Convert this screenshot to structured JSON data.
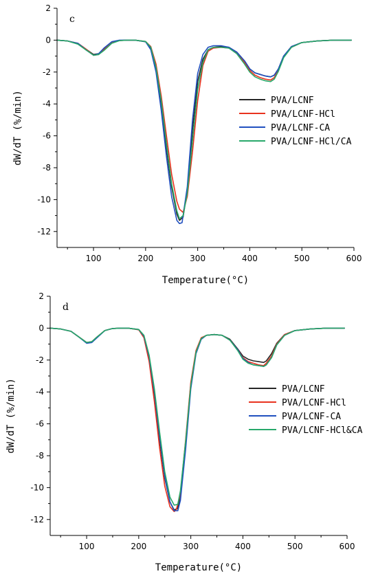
{
  "chart_data": [
    {
      "type": "line",
      "panel": "c",
      "xlabel": "Temperature(°C)",
      "ylabel": "dW/dT (%/min)",
      "xlim": [
        30,
        600
      ],
      "ylim": [
        -13,
        2
      ],
      "xticks": [
        100,
        200,
        300,
        400,
        500,
        600
      ],
      "yticks": [
        2,
        0,
        -2,
        -4,
        -6,
        -8,
        -10,
        -12
      ],
      "legend_position": "right",
      "series": [
        {
          "name": "PVA/LCNF",
          "color": "#262626",
          "x": [
            30,
            50,
            70,
            85,
            100,
            110,
            120,
            135,
            150,
            165,
            180,
            200,
            210,
            220,
            230,
            240,
            250,
            260,
            265,
            272,
            280,
            290,
            300,
            310,
            320,
            330,
            345,
            360,
            375,
            390,
            400,
            410,
            420,
            430,
            440,
            447,
            455,
            465,
            480,
            500,
            530,
            560,
            595
          ],
          "y": [
            0,
            -0.05,
            -0.2,
            -0.55,
            -0.9,
            -0.85,
            -0.55,
            -0.15,
            -0.02,
            0,
            0,
            -0.1,
            -0.5,
            -1.8,
            -4.0,
            -6.8,
            -9.2,
            -10.9,
            -11.3,
            -11.1,
            -9.4,
            -5.6,
            -2.6,
            -1.2,
            -0.6,
            -0.45,
            -0.4,
            -0.45,
            -0.75,
            -1.3,
            -1.8,
            -2.05,
            -2.15,
            -2.25,
            -2.3,
            -2.2,
            -1.8,
            -1.0,
            -0.4,
            -0.15,
            -0.05,
            0,
            0
          ]
        },
        {
          "name": "PVA/LCNF-HCl",
          "color": "#e8321e",
          "x": [
            30,
            50,
            70,
            85,
            100,
            110,
            120,
            135,
            150,
            165,
            180,
            200,
            210,
            220,
            230,
            240,
            250,
            260,
            265,
            272,
            280,
            290,
            300,
            310,
            320,
            330,
            345,
            360,
            375,
            390,
            400,
            410,
            420,
            430,
            440,
            447,
            455,
            465,
            480,
            500,
            530,
            560,
            595
          ],
          "y": [
            0,
            -0.05,
            -0.2,
            -0.55,
            -0.95,
            -0.9,
            -0.6,
            -0.15,
            -0.02,
            0,
            0,
            -0.08,
            -0.4,
            -1.5,
            -3.5,
            -6.0,
            -8.4,
            -10.1,
            -10.6,
            -10.8,
            -9.8,
            -7.0,
            -3.8,
            -1.6,
            -0.7,
            -0.5,
            -0.45,
            -0.5,
            -0.8,
            -1.4,
            -1.9,
            -2.2,
            -2.35,
            -2.45,
            -2.5,
            -2.35,
            -1.9,
            -1.05,
            -0.45,
            -0.15,
            -0.05,
            0,
            0
          ]
        },
        {
          "name": "PVA/LCNF-CA",
          "color": "#1f4fbf",
          "x": [
            30,
            50,
            70,
            85,
            100,
            110,
            120,
            135,
            150,
            165,
            180,
            200,
            210,
            220,
            230,
            240,
            250,
            260,
            265,
            270,
            280,
            290,
            300,
            310,
            320,
            330,
            345,
            360,
            375,
            390,
            400,
            410,
            420,
            430,
            440,
            447,
            455,
            465,
            480,
            500,
            530,
            560,
            595
          ],
          "y": [
            0,
            -0.05,
            -0.2,
            -0.6,
            -0.95,
            -0.85,
            -0.5,
            -0.1,
            0,
            0,
            0,
            -0.1,
            -0.6,
            -2.0,
            -4.4,
            -7.3,
            -9.8,
            -11.3,
            -11.5,
            -11.45,
            -9.2,
            -5.0,
            -2.1,
            -0.9,
            -0.45,
            -0.35,
            -0.35,
            -0.45,
            -0.75,
            -1.3,
            -1.8,
            -2.05,
            -2.15,
            -2.25,
            -2.3,
            -2.2,
            -1.8,
            -1.0,
            -0.4,
            -0.15,
            -0.05,
            0,
            0
          ]
        },
        {
          "name": "PVA/LCNF-HCl/CA",
          "color": "#27a86a",
          "x": [
            30,
            50,
            70,
            85,
            100,
            110,
            120,
            135,
            150,
            165,
            180,
            200,
            210,
            220,
            230,
            240,
            250,
            260,
            265,
            272,
            280,
            290,
            300,
            310,
            320,
            330,
            345,
            360,
            375,
            390,
            400,
            410,
            420,
            430,
            440,
            447,
            455,
            465,
            480,
            500,
            530,
            560,
            595
          ],
          "y": [
            0,
            -0.05,
            -0.25,
            -0.6,
            -0.95,
            -0.9,
            -0.65,
            -0.2,
            -0.03,
            0,
            0,
            -0.08,
            -0.45,
            -1.7,
            -3.8,
            -6.5,
            -9.0,
            -10.7,
            -11.2,
            -11.0,
            -9.6,
            -6.3,
            -3.1,
            -1.4,
            -0.6,
            -0.45,
            -0.45,
            -0.5,
            -0.85,
            -1.5,
            -2.0,
            -2.3,
            -2.45,
            -2.55,
            -2.6,
            -2.45,
            -1.95,
            -1.1,
            -0.45,
            -0.15,
            -0.05,
            0,
            0
          ]
        }
      ]
    },
    {
      "type": "line",
      "panel": "d",
      "xlabel": "Temperature(°C)",
      "ylabel": "dW/dT (%/min)",
      "xlim": [
        30,
        600
      ],
      "ylim": [
        -13,
        2
      ],
      "xticks": [
        100,
        200,
        300,
        400,
        500,
        600
      ],
      "yticks": [
        2,
        0,
        -2,
        -4,
        -6,
        -8,
        -10,
        -12
      ],
      "legend_position": "right",
      "series": [
        {
          "name": "PVA/LCNF",
          "color": "#262626",
          "x": [
            30,
            50,
            70,
            85,
            100,
            110,
            120,
            135,
            150,
            165,
            180,
            200,
            210,
            220,
            230,
            240,
            250,
            260,
            268,
            275,
            280,
            290,
            300,
            310,
            320,
            330,
            345,
            360,
            375,
            390,
            400,
            410,
            420,
            430,
            440,
            445,
            455,
            465,
            480,
            500,
            530,
            560,
            595
          ],
          "y": [
            0,
            -0.05,
            -0.2,
            -0.55,
            -0.9,
            -0.85,
            -0.55,
            -0.15,
            -0.02,
            0,
            0,
            -0.1,
            -0.5,
            -1.9,
            -4.2,
            -7.0,
            -9.4,
            -10.9,
            -11.4,
            -11.3,
            -10.5,
            -7.2,
            -3.5,
            -1.5,
            -0.65,
            -0.45,
            -0.4,
            -0.45,
            -0.7,
            -1.3,
            -1.75,
            -1.95,
            -2.05,
            -2.1,
            -2.15,
            -2.05,
            -1.6,
            -0.95,
            -0.4,
            -0.15,
            -0.05,
            0,
            0
          ]
        },
        {
          "name": "PVA/LCNF-HCl",
          "color": "#e8321e",
          "x": [
            30,
            50,
            70,
            85,
            100,
            110,
            120,
            135,
            150,
            165,
            180,
            200,
            210,
            220,
            230,
            240,
            250,
            260,
            268,
            272,
            280,
            290,
            300,
            310,
            320,
            330,
            345,
            360,
            375,
            390,
            400,
            410,
            420,
            430,
            440,
            445,
            455,
            465,
            480,
            500,
            530,
            560,
            595
          ],
          "y": [
            0,
            -0.05,
            -0.2,
            -0.55,
            -0.9,
            -0.85,
            -0.55,
            -0.15,
            -0.02,
            0,
            0,
            -0.1,
            -0.6,
            -2.1,
            -4.6,
            -7.5,
            -9.9,
            -11.2,
            -11.5,
            -11.4,
            -10.4,
            -7.0,
            -3.4,
            -1.4,
            -0.6,
            -0.45,
            -0.4,
            -0.45,
            -0.75,
            -1.35,
            -1.85,
            -2.1,
            -2.2,
            -2.3,
            -2.35,
            -2.2,
            -1.75,
            -1.0,
            -0.4,
            -0.15,
            -0.05,
            0,
            0
          ]
        },
        {
          "name": "PVA/LCNF-CA",
          "color": "#1f4fbf",
          "x": [
            30,
            50,
            70,
            85,
            100,
            110,
            120,
            135,
            150,
            165,
            180,
            200,
            210,
            220,
            230,
            240,
            250,
            260,
            268,
            275,
            280,
            290,
            300,
            310,
            320,
            330,
            345,
            360,
            375,
            390,
            400,
            410,
            420,
            430,
            440,
            445,
            455,
            465,
            480,
            500,
            530,
            560,
            595
          ],
          "y": [
            0,
            -0.05,
            -0.2,
            -0.55,
            -0.95,
            -0.9,
            -0.6,
            -0.15,
            -0.02,
            0,
            0,
            -0.08,
            -0.5,
            -1.8,
            -4.0,
            -6.8,
            -9.3,
            -10.9,
            -11.45,
            -11.45,
            -10.8,
            -7.6,
            -3.8,
            -1.6,
            -0.7,
            -0.45,
            -0.4,
            -0.45,
            -0.75,
            -1.35,
            -1.9,
            -2.15,
            -2.3,
            -2.35,
            -2.4,
            -2.3,
            -1.85,
            -1.05,
            -0.45,
            -0.15,
            -0.05,
            0,
            0
          ]
        },
        {
          "name": "PVA/LCNF-HCl&CA",
          "color": "#27a86a",
          "x": [
            30,
            50,
            70,
            85,
            100,
            110,
            120,
            135,
            150,
            165,
            180,
            200,
            210,
            220,
            230,
            240,
            250,
            260,
            268,
            275,
            280,
            290,
            300,
            310,
            320,
            330,
            345,
            360,
            375,
            390,
            400,
            410,
            420,
            430,
            440,
            445,
            455,
            465,
            480,
            500,
            530,
            560,
            595
          ],
          "y": [
            0,
            -0.05,
            -0.2,
            -0.55,
            -0.9,
            -0.85,
            -0.55,
            -0.15,
            -0.02,
            0,
            0,
            -0.08,
            -0.45,
            -1.7,
            -3.8,
            -6.5,
            -9.0,
            -10.6,
            -11.1,
            -11.05,
            -10.2,
            -7.1,
            -3.6,
            -1.5,
            -0.65,
            -0.45,
            -0.4,
            -0.45,
            -0.75,
            -1.4,
            -1.95,
            -2.2,
            -2.3,
            -2.35,
            -2.4,
            -2.3,
            -1.85,
            -1.05,
            -0.45,
            -0.15,
            -0.05,
            0,
            0
          ]
        }
      ]
    }
  ]
}
